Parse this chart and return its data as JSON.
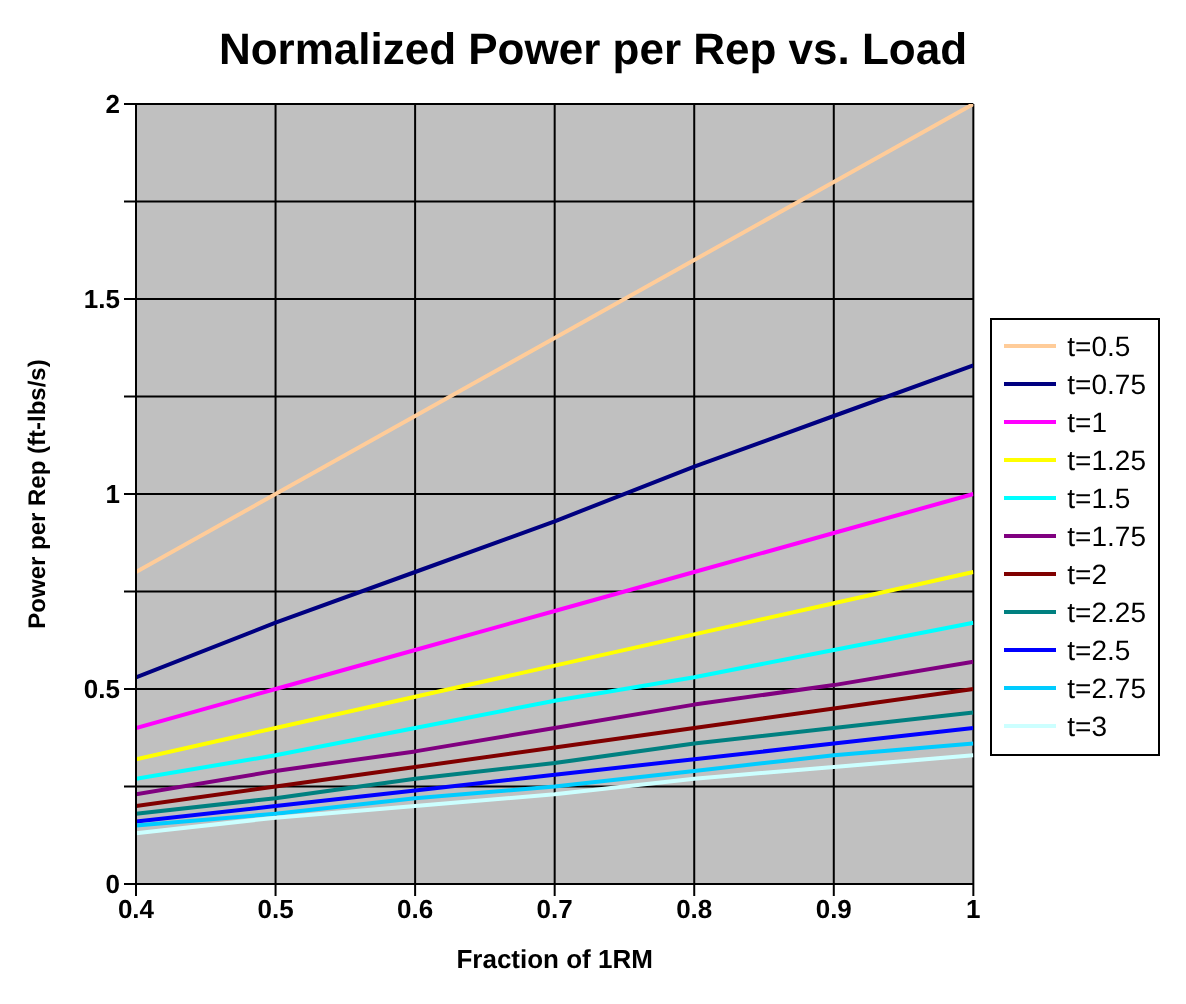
{
  "chart_data": {
    "type": "line",
    "title": "Normalized Power per Rep vs. Load",
    "xlabel": "Fraction of 1RM",
    "ylabel": "Power per Rep (ft-lbs/s)",
    "x": [
      0.4,
      0.5,
      0.6,
      0.7,
      0.8,
      0.9,
      1
    ],
    "xlim": [
      0.4,
      1
    ],
    "xticks": [
      0.4,
      0.5,
      0.6,
      0.7,
      0.8,
      0.9,
      1
    ],
    "ylim": [
      0,
      2
    ],
    "yticks": [
      0,
      {
        "value": 0.25,
        "label": null
      },
      0.5,
      {
        "value": 0.75,
        "label": null
      },
      1,
      {
        "value": 1.25,
        "label": null
      },
      1.5,
      {
        "value": 1.75,
        "label": null
      },
      2
    ],
    "grid": true,
    "legend": "right",
    "marker": "none",
    "line_style": "solid",
    "series": [
      {
        "name": "t=0.5",
        "color": "#ffcc99",
        "values": [
          0.8,
          1,
          1.2,
          1.4,
          1.6,
          1.8,
          2
        ]
      },
      {
        "name": "t=0.75",
        "color": "#000080",
        "values": [
          0.53,
          0.67,
          0.8,
          0.93,
          1.07,
          1.2,
          1.33
        ]
      },
      {
        "name": "t=1",
        "color": "#ff00ff",
        "values": [
          0.4,
          0.5,
          0.6,
          0.7,
          0.8,
          0.9,
          1
        ]
      },
      {
        "name": "t=1.25",
        "color": "#ffff00",
        "values": [
          0.32,
          0.4,
          0.48,
          0.56,
          0.64,
          0.72,
          0.8
        ]
      },
      {
        "name": "t=1.5",
        "color": "#00ffff",
        "values": [
          0.27,
          0.33,
          0.4,
          0.47,
          0.53,
          0.6,
          0.67
        ]
      },
      {
        "name": "t=1.75",
        "color": "#800080",
        "values": [
          0.23,
          0.29,
          0.34,
          0.4,
          0.46,
          0.51,
          0.57
        ]
      },
      {
        "name": "t=2",
        "color": "#800000",
        "values": [
          0.2,
          0.25,
          0.3,
          0.35,
          0.4,
          0.45,
          0.5
        ]
      },
      {
        "name": "t=2.25",
        "color": "#008080",
        "values": [
          0.18,
          0.22,
          0.27,
          0.31,
          0.36,
          0.4,
          0.44
        ]
      },
      {
        "name": "t=2.5",
        "color": "#0000ff",
        "values": [
          0.16,
          0.2,
          0.24,
          0.28,
          0.32,
          0.36,
          0.4
        ]
      },
      {
        "name": "t=2.75",
        "color": "#00ccff",
        "values": [
          0.15,
          0.18,
          0.22,
          0.25,
          0.29,
          0.33,
          0.36
        ]
      },
      {
        "name": "t=3",
        "color": "#ccffff",
        "values": [
          0.13,
          0.17,
          0.2,
          0.23,
          0.27,
          0.3,
          0.33
        ]
      }
    ]
  }
}
